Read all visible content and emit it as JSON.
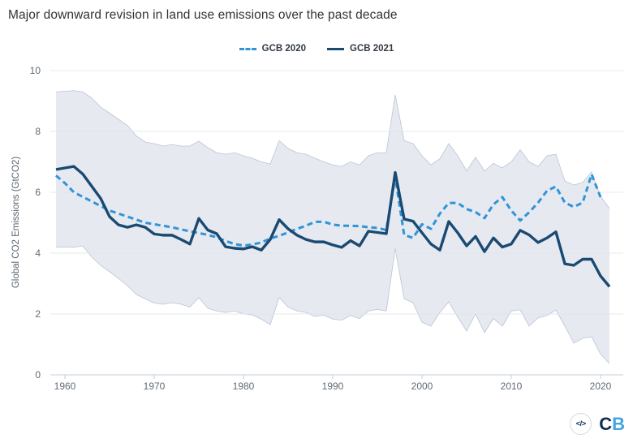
{
  "title": "Major downward revision in land use emissions over the past decade",
  "legend": [
    {
      "label": "GCB 2020",
      "color": "#3094d8",
      "style": "dashed"
    },
    {
      "label": "GCB 2021",
      "color": "#1a4a72",
      "style": "solid"
    }
  ],
  "y_axis": {
    "label": "Global CO2 Emissions (GtCO2)",
    "ticks": [
      "0",
      "2",
      "4",
      "6",
      "8",
      "10"
    ]
  },
  "x_axis": {
    "ticks": [
      "1960",
      "1970",
      "1980",
      "1990",
      "2000",
      "2010",
      "2020"
    ]
  },
  "footer": {
    "code_icon": "</>",
    "logo_c": "C",
    "logo_b": "B"
  },
  "colors": {
    "gcb2020_line": "#3094d8",
    "gcb2021_line": "#1a4a72",
    "band_fill": "#e6e9f0",
    "band_edge": "#b9c5d6",
    "gridline": "#e2e6ec",
    "axis_line": "#c3cfda",
    "tick_text": "#606b76",
    "title_text": "#333333"
  },
  "chart_data": {
    "type": "line",
    "title": "Major downward revision in land use emissions over the past decade",
    "xlabel": "",
    "ylabel": "Global CO2 Emissions (GtCO2)",
    "ylim": [
      0,
      10
    ],
    "xlim": [
      1959,
      2021
    ],
    "grid": true,
    "legend_position": "top-center",
    "x": [
      1959,
      1960,
      1961,
      1962,
      1963,
      1964,
      1965,
      1966,
      1967,
      1968,
      1969,
      1970,
      1971,
      1972,
      1973,
      1974,
      1975,
      1976,
      1977,
      1978,
      1979,
      1980,
      1981,
      1982,
      1983,
      1984,
      1985,
      1986,
      1987,
      1988,
      1989,
      1990,
      1991,
      1992,
      1993,
      1994,
      1995,
      1996,
      1997,
      1998,
      1999,
      2000,
      2001,
      2002,
      2003,
      2004,
      2005,
      2006,
      2007,
      2008,
      2009,
      2010,
      2011,
      2012,
      2013,
      2014,
      2015,
      2016,
      2017,
      2018,
      2019,
      2020,
      2021
    ],
    "series": [
      {
        "name": "GCB 2020",
        "color": "#3094d8",
        "dash": true,
        "values": [
          6.55,
          6.3,
          6.0,
          5.85,
          5.7,
          5.55,
          5.4,
          5.3,
          5.2,
          5.1,
          5.0,
          4.95,
          4.9,
          4.85,
          4.78,
          4.72,
          4.66,
          4.6,
          4.52,
          4.4,
          4.3,
          4.25,
          4.28,
          4.35,
          4.48,
          4.57,
          4.68,
          4.8,
          4.9,
          5.03,
          5.03,
          4.94,
          4.9,
          4.9,
          4.89,
          4.85,
          4.83,
          4.76,
          6.5,
          4.6,
          4.5,
          4.95,
          4.8,
          5.3,
          5.65,
          5.65,
          5.45,
          5.35,
          5.15,
          5.6,
          5.84,
          5.4,
          5.07,
          5.34,
          5.66,
          6.05,
          6.19,
          5.66,
          5.52,
          5.66,
          6.59,
          5.84,
          null
        ]
      },
      {
        "name": "GCB 2021",
        "color": "#1a4a72",
        "dash": false,
        "values": [
          6.75,
          6.8,
          6.85,
          6.6,
          6.2,
          5.8,
          5.2,
          4.93,
          4.85,
          4.93,
          4.85,
          4.63,
          4.59,
          4.59,
          4.45,
          4.3,
          5.14,
          4.76,
          4.64,
          4.21,
          4.16,
          4.14,
          4.21,
          4.1,
          4.45,
          5.1,
          4.8,
          4.59,
          4.45,
          4.37,
          4.37,
          4.27,
          4.19,
          4.41,
          4.24,
          4.72,
          4.68,
          4.64,
          6.65,
          5.12,
          5.05,
          4.67,
          4.3,
          4.1,
          5.04,
          4.67,
          4.24,
          4.55,
          4.05,
          4.5,
          4.2,
          4.3,
          4.75,
          4.6,
          4.35,
          4.5,
          4.7,
          3.65,
          3.6,
          3.8,
          3.8,
          3.25,
          2.9
        ]
      }
    ],
    "band": {
      "name": "uncertainty-range",
      "fill": "#e6e9f0",
      "edge": "#b9c5d6",
      "upper": [
        9.3,
        9.32,
        9.34,
        9.3,
        9.1,
        8.8,
        8.6,
        8.4,
        8.2,
        7.85,
        7.65,
        7.6,
        7.52,
        7.57,
        7.52,
        7.52,
        7.68,
        7.47,
        7.3,
        7.25,
        7.3,
        7.2,
        7.12,
        7.0,
        6.93,
        7.7,
        7.44,
        7.3,
        7.25,
        7.12,
        7.0,
        6.9,
        6.85,
        7.0,
        6.9,
        7.2,
        7.3,
        7.3,
        9.2,
        7.7,
        7.6,
        7.2,
        6.9,
        7.1,
        7.6,
        7.2,
        6.7,
        7.15,
        6.7,
        6.95,
        6.8,
        7.0,
        7.4,
        7.0,
        6.85,
        7.2,
        7.25,
        6.37,
        6.24,
        6.32,
        6.67,
        5.87,
        5.47
      ],
      "lower": [
        4.19,
        4.2,
        4.19,
        4.24,
        3.87,
        3.6,
        3.39,
        3.17,
        2.93,
        2.64,
        2.5,
        2.36,
        2.32,
        2.37,
        2.32,
        2.23,
        2.54,
        2.19,
        2.1,
        2.05,
        2.1,
        2.0,
        1.97,
        1.83,
        1.65,
        2.54,
        2.23,
        2.1,
        2.05,
        1.92,
        1.96,
        1.83,
        1.8,
        1.95,
        1.85,
        2.1,
        2.15,
        2.1,
        4.15,
        2.5,
        2.37,
        1.73,
        1.6,
        2.05,
        2.4,
        1.9,
        1.44,
        2.0,
        1.39,
        1.85,
        1.6,
        2.1,
        2.14,
        1.6,
        1.87,
        1.95,
        2.13,
        1.6,
        1.04,
        1.2,
        1.25,
        0.68,
        0.37
      ]
    }
  }
}
